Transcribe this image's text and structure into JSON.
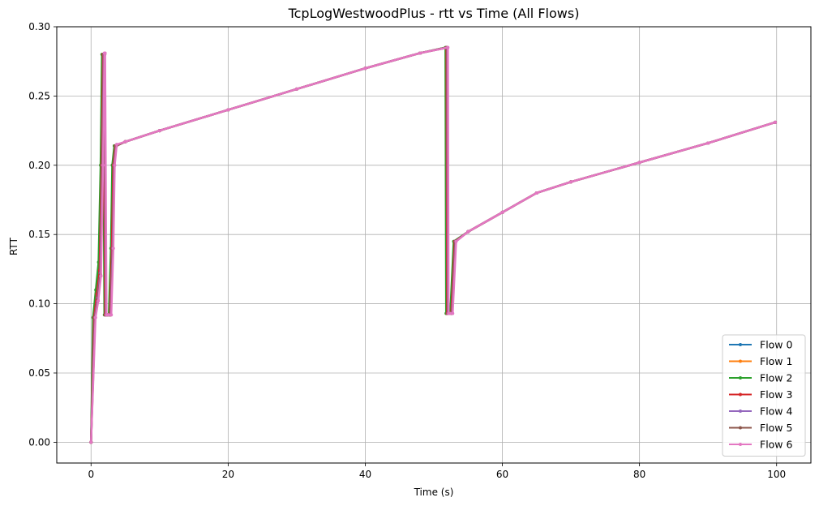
{
  "chart_data": {
    "type": "line",
    "title": "TcpLogWestwoodPlus - rtt vs Time (All Flows)",
    "xlabel": "Time (s)",
    "ylabel": "RTT",
    "xlim": [
      -5,
      105
    ],
    "ylim": [
      -0.015,
      0.3
    ],
    "xticks": [
      0,
      20,
      40,
      60,
      80,
      100
    ],
    "yticks": [
      0.0,
      0.05,
      0.1,
      0.15,
      0.2,
      0.25,
      0.3
    ],
    "xtick_labels": [
      "0",
      "20",
      "40",
      "60",
      "80",
      "100"
    ],
    "ytick_labels": [
      "0.00",
      "0.05",
      "0.10",
      "0.15",
      "0.20",
      "0.25",
      "0.30"
    ],
    "grid": true,
    "legend_position": "lower-right",
    "series": [
      {
        "name": "Flow 0",
        "color": "#1f77b4",
        "x": [
          0,
          0.4,
          0.8,
          1.2,
          1.5,
          1.7,
          1.8,
          2.0,
          2.3,
          2.7,
          3.0,
          3.2,
          3.5,
          5,
          10,
          20,
          30,
          40,
          48,
          51.8,
          51.9,
          52.1,
          52.5,
          53,
          55,
          60,
          65,
          70,
          80,
          90,
          99.8
        ],
        "y": [
          0.0,
          0.09,
          0.108,
          0.125,
          0.2,
          0.28,
          0.28,
          0.092,
          0.092,
          0.092,
          0.14,
          0.2,
          0.214,
          0.217,
          0.225,
          0.24,
          0.255,
          0.27,
          0.281,
          0.285,
          0.093,
          0.093,
          0.093,
          0.145,
          0.152,
          0.166,
          0.18,
          0.188,
          0.202,
          0.216,
          0.231
        ]
      },
      {
        "name": "Flow 1",
        "color": "#ff7f0e",
        "x": [
          0,
          0.5,
          0.9,
          1.3,
          1.6,
          1.8,
          1.9,
          2.1,
          2.4,
          2.8,
          3.1,
          3.3,
          3.6,
          5,
          10,
          20,
          30,
          40,
          48,
          51.9,
          52.0,
          52.2,
          52.6,
          53.1,
          55,
          60,
          65,
          70,
          80,
          90,
          99.8
        ],
        "y": [
          0.0,
          0.09,
          0.105,
          0.123,
          0.2,
          0.28,
          0.28,
          0.092,
          0.092,
          0.092,
          0.14,
          0.2,
          0.214,
          0.217,
          0.225,
          0.24,
          0.255,
          0.27,
          0.281,
          0.285,
          0.093,
          0.093,
          0.093,
          0.145,
          0.152,
          0.166,
          0.18,
          0.188,
          0.202,
          0.216,
          0.231
        ]
      },
      {
        "name": "Flow 2",
        "color": "#2ca02c",
        "x": [
          0,
          0.3,
          0.7,
          1.1,
          1.4,
          1.6,
          1.75,
          1.95,
          2.2,
          2.6,
          2.9,
          3.1,
          3.4,
          5,
          10,
          20,
          30,
          40,
          48,
          51.7,
          51.8,
          52.0,
          52.4,
          52.9,
          55,
          60,
          65,
          70,
          80,
          90,
          99.8
        ],
        "y": [
          0.0,
          0.09,
          0.11,
          0.13,
          0.2,
          0.28,
          0.28,
          0.092,
          0.092,
          0.092,
          0.14,
          0.2,
          0.214,
          0.217,
          0.225,
          0.24,
          0.255,
          0.27,
          0.281,
          0.285,
          0.093,
          0.093,
          0.093,
          0.145,
          0.152,
          0.166,
          0.18,
          0.188,
          0.202,
          0.216,
          0.231
        ]
      },
      {
        "name": "Flow 3",
        "color": "#d62728",
        "x": [
          0,
          0.45,
          0.85,
          1.25,
          1.55,
          1.75,
          1.85,
          2.05,
          2.35,
          2.75,
          3.05,
          3.25,
          3.55,
          5,
          10,
          20,
          30,
          40,
          48,
          51.85,
          51.95,
          52.15,
          52.55,
          53.05,
          55,
          60,
          65,
          70,
          80,
          90,
          99.8
        ],
        "y": [
          0.0,
          0.09,
          0.107,
          0.124,
          0.2,
          0.28,
          0.28,
          0.092,
          0.092,
          0.092,
          0.14,
          0.2,
          0.214,
          0.217,
          0.225,
          0.24,
          0.255,
          0.27,
          0.281,
          0.285,
          0.093,
          0.093,
          0.093,
          0.145,
          0.152,
          0.166,
          0.18,
          0.188,
          0.202,
          0.216,
          0.231
        ]
      },
      {
        "name": "Flow 4",
        "color": "#9467bd",
        "x": [
          0,
          0.55,
          0.95,
          1.35,
          1.65,
          1.85,
          1.95,
          2.15,
          2.45,
          2.85,
          3.15,
          3.35,
          3.65,
          5,
          10,
          20,
          30,
          40,
          48,
          51.95,
          52.05,
          52.25,
          52.65,
          53.15,
          55,
          60,
          65,
          70,
          80,
          90,
          99.8
        ],
        "y": [
          0.0,
          0.09,
          0.104,
          0.122,
          0.2,
          0.28,
          0.28,
          0.092,
          0.092,
          0.092,
          0.14,
          0.2,
          0.214,
          0.217,
          0.225,
          0.24,
          0.255,
          0.27,
          0.281,
          0.285,
          0.093,
          0.093,
          0.093,
          0.145,
          0.152,
          0.166,
          0.18,
          0.188,
          0.202,
          0.216,
          0.231
        ]
      },
      {
        "name": "Flow 5",
        "color": "#8c564b",
        "x": [
          0,
          0.6,
          1.0,
          1.4,
          1.7,
          1.9,
          2.0,
          2.2,
          2.5,
          2.9,
          3.2,
          3.4,
          3.7,
          5,
          10,
          20,
          30,
          40,
          48,
          52.0,
          52.1,
          52.3,
          52.7,
          53.2,
          55,
          60,
          65,
          70,
          80,
          90,
          99.8
        ],
        "y": [
          0.0,
          0.09,
          0.103,
          0.121,
          0.2,
          0.28,
          0.28,
          0.092,
          0.092,
          0.092,
          0.14,
          0.2,
          0.214,
          0.217,
          0.225,
          0.24,
          0.255,
          0.27,
          0.281,
          0.285,
          0.093,
          0.093,
          0.093,
          0.145,
          0.152,
          0.166,
          0.18,
          0.188,
          0.202,
          0.216,
          0.231
        ]
      },
      {
        "name": "Flow 6",
        "color": "#e377c2",
        "x": [
          0,
          0.65,
          1.05,
          1.45,
          1.75,
          1.95,
          2.05,
          2.25,
          2.55,
          2.95,
          3.25,
          3.45,
          3.75,
          5,
          10,
          20,
          30,
          40,
          48,
          52.05,
          52.15,
          52.35,
          52.75,
          53.25,
          55,
          60,
          65,
          70,
          80,
          90,
          99.8
        ],
        "y": [
          0.0,
          0.09,
          0.102,
          0.12,
          0.2,
          0.281,
          0.281,
          0.092,
          0.092,
          0.092,
          0.14,
          0.2,
          0.215,
          0.217,
          0.225,
          0.24,
          0.255,
          0.27,
          0.281,
          0.285,
          0.093,
          0.093,
          0.093,
          0.145,
          0.152,
          0.166,
          0.18,
          0.188,
          0.202,
          0.216,
          0.231
        ]
      }
    ]
  }
}
